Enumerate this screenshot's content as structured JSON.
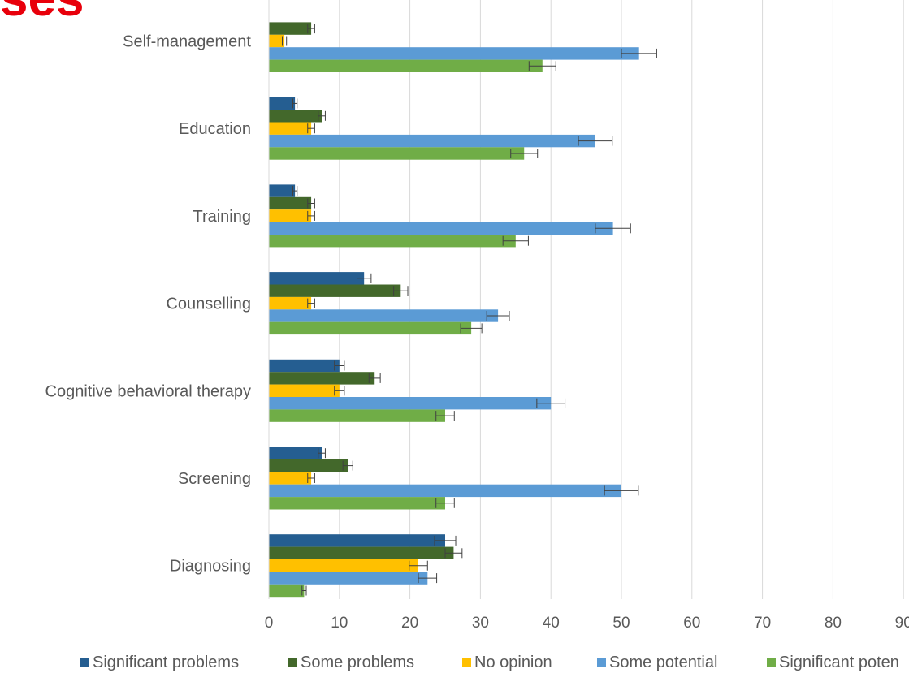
{
  "title_fragment": "ses",
  "chart_data": {
    "type": "bar",
    "orientation": "horizontal",
    "categories": [
      "Self-management",
      "Education",
      "Training",
      "Counselling",
      "Cognitive behavioral therapy",
      "Screening",
      "Diagnosing"
    ],
    "series": [
      {
        "name": "Significant problems",
        "color": "#255e91",
        "values": [
          0,
          3.7,
          3.7,
          13.5,
          10,
          7.5,
          25
        ],
        "errors": [
          0,
          0.3,
          0.3,
          1,
          0.7,
          0.5,
          1.5
        ]
      },
      {
        "name": "Some problems",
        "color": "#43682b",
        "values": [
          6,
          7.5,
          6,
          18.7,
          15,
          11.2,
          26.2
        ],
        "errors": [
          0.5,
          0.5,
          0.5,
          1,
          0.8,
          0.7,
          1.2
        ]
      },
      {
        "name": "No opinion",
        "color": "#ffc000",
        "values": [
          2.2,
          6,
          6,
          6,
          10,
          6,
          21.2
        ],
        "errors": [
          0.3,
          0.5,
          0.5,
          0.5,
          0.7,
          0.5,
          1.3
        ]
      },
      {
        "name": "Some potential",
        "color": "#5b9bd5",
        "values": [
          52.5,
          46.3,
          48.8,
          32.5,
          40,
          50,
          22.5
        ],
        "errors": [
          2.5,
          2.4,
          2.5,
          1.6,
          2,
          2.4,
          1.3
        ]
      },
      {
        "name": "Significant poten",
        "color": "#70ad47",
        "values": [
          38.8,
          36.2,
          35,
          28.7,
          25,
          25,
          5
        ],
        "errors": [
          1.9,
          1.9,
          1.8,
          1.5,
          1.3,
          1.3,
          0.3
        ]
      }
    ],
    "xlim": [
      0,
      90
    ],
    "xticks": [
      "0",
      "10",
      "20",
      "30",
      "40",
      "50",
      "60",
      "70",
      "80",
      "90"
    ],
    "grid": "vertical",
    "legend": "bottom"
  }
}
